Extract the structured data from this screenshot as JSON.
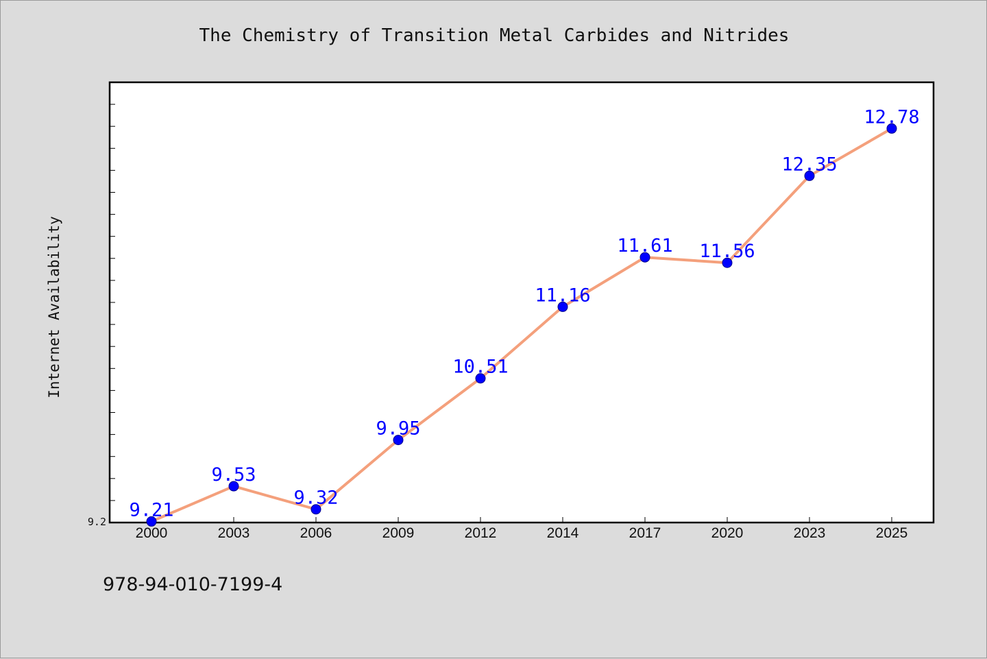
{
  "chart_data": {
    "type": "line",
    "title": "The Chemistry of Transition Metal Carbides and Nitrides",
    "xlabel": "",
    "ylabel": "Internet Availability",
    "categories": [
      "2000",
      "2003",
      "2006",
      "2009",
      "2012",
      "2014",
      "2017",
      "2020",
      "2023",
      "2025"
    ],
    "values": [
      9.21,
      9.53,
      9.32,
      9.95,
      10.51,
      11.16,
      11.61,
      11.56,
      12.35,
      12.78
    ],
    "data_labels": [
      "9.21",
      "9.53",
      "9.32",
      "9.95",
      "10.51",
      "11.16",
      "11.61",
      "11.56",
      "12.35",
      "12.78"
    ],
    "ylim": [
      9.2,
      13.2
    ],
    "y_tick_labels": [
      "9.2"
    ],
    "grid": false,
    "line_color": "#f4a07c",
    "marker_color": "#0000ff",
    "label_color": "#0000ff"
  },
  "footer": {
    "isbn": "978-94-010-7199-4"
  }
}
